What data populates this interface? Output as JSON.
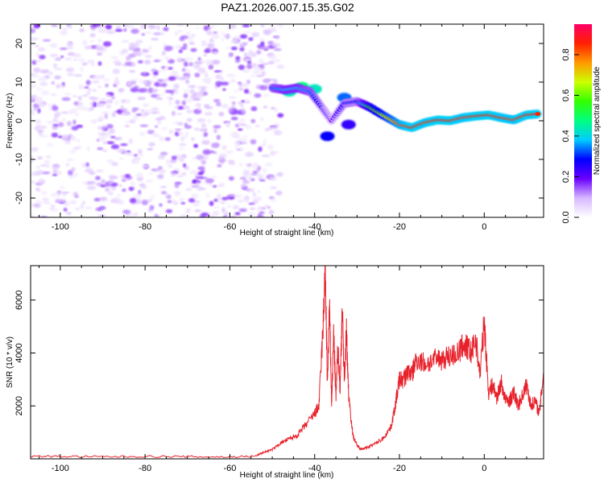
{
  "figure": {
    "title": "PAZ1.2026.007.15.35.G02"
  },
  "colors": {
    "snr_line": "#e8202a",
    "axis": "#000000"
  },
  "chart_data": [
    {
      "type": "heatmap",
      "name": "spectrogram",
      "xlabel": "Height of straight line (km)",
      "ylabel": "Frequency (Hz)",
      "xlim": [
        -107,
        14
      ],
      "ylim": [
        -25,
        25
      ],
      "xticks": [
        -100,
        -80,
        -60,
        -40,
        -20,
        0
      ],
      "yticks": [
        -20,
        -10,
        0,
        10,
        20
      ],
      "colorbar": {
        "label": "Normalized spectral amplitude",
        "range": [
          0,
          0.95
        ],
        "ticks": [
          0.0,
          0.2,
          0.4,
          0.6,
          0.8
        ]
      },
      "noise_region": {
        "x": [
          -107,
          -48
        ],
        "y": [
          -25,
          25
        ],
        "amplitude": [
          0.03,
          0.2
        ]
      },
      "ridge": [
        {
          "x": -50,
          "y": 8.5,
          "a": 0.35
        },
        {
          "x": -47,
          "y": 8.0,
          "a": 0.4
        },
        {
          "x": -44,
          "y": 8.5,
          "a": 0.4
        },
        {
          "x": -41,
          "y": 7.5,
          "a": 0.35
        },
        {
          "x": -38,
          "y": 3.0,
          "a": 0.25
        },
        {
          "x": -36,
          "y": 0.0,
          "a": 0.2
        },
        {
          "x": -33,
          "y": 4.5,
          "a": 0.3
        },
        {
          "x": -30,
          "y": 5.0,
          "a": 0.3
        },
        {
          "x": -27,
          "y": 3.5,
          "a": 0.6
        },
        {
          "x": -24,
          "y": 1.5,
          "a": 0.7
        },
        {
          "x": -20,
          "y": -1.0,
          "a": 0.85
        },
        {
          "x": -17,
          "y": -1.8,
          "a": 0.9
        },
        {
          "x": -14,
          "y": -0.5,
          "a": 0.88
        },
        {
          "x": -11,
          "y": 0.2,
          "a": 0.9
        },
        {
          "x": -8,
          "y": 0.0,
          "a": 0.9
        },
        {
          "x": -5,
          "y": 0.8,
          "a": 0.88
        },
        {
          "x": -2,
          "y": 1.2,
          "a": 0.9
        },
        {
          "x": 1,
          "y": 1.5,
          "a": 0.9
        },
        {
          "x": 4,
          "y": 0.8,
          "a": 0.88
        },
        {
          "x": 7,
          "y": 0.2,
          "a": 0.88
        },
        {
          "x": 10,
          "y": 1.5,
          "a": 0.9
        },
        {
          "x": 13,
          "y": 1.8,
          "a": 0.9
        }
      ],
      "blobs": [
        {
          "x": -46,
          "y": 7.5,
          "a": 0.45
        },
        {
          "x": -43,
          "y": 8.8,
          "a": 0.5
        },
        {
          "x": -40,
          "y": 8.2,
          "a": 0.45
        },
        {
          "x": -37,
          "y": -4.0,
          "a": 0.3
        },
        {
          "x": -32,
          "y": -1.0,
          "a": 0.25
        },
        {
          "x": -33,
          "y": 6.0,
          "a": 0.35
        }
      ]
    },
    {
      "type": "line",
      "name": "snr",
      "xlabel": "Height of straight line (km)",
      "ylabel": "SNR (10 * v/v)",
      "xlim": [
        -107,
        14
      ],
      "ylim": [
        0,
        7300
      ],
      "xticks": [
        -100,
        -80,
        -60,
        -40,
        -20,
        0
      ],
      "yticks": [
        2000,
        4000,
        6000
      ],
      "series": [
        {
          "name": "SNR",
          "x": [
            -107,
            -100,
            -90,
            -80,
            -70,
            -60,
            -54,
            -52,
            -50,
            -48,
            -46,
            -44,
            -42,
            -40,
            -39,
            -38,
            -37.5,
            -37,
            -36.5,
            -36,
            -35.5,
            -35,
            -34.5,
            -34,
            -33.5,
            -33,
            -32.5,
            -32,
            -31,
            -30,
            -29,
            -28,
            -26,
            -24,
            -22,
            -21,
            -20,
            -19,
            -18,
            -17,
            -16,
            -14,
            -12,
            -10,
            -8,
            -6,
            -5,
            -4,
            -3,
            -2,
            -1,
            0,
            1,
            2,
            3,
            4,
            5,
            6,
            7,
            8,
            9,
            10,
            11,
            12,
            13,
            14
          ],
          "y": [
            100,
            90,
            80,
            90,
            80,
            70,
            100,
            250,
            350,
            600,
            750,
            900,
            1300,
            1700,
            2000,
            5000,
            7300,
            2800,
            5800,
            2100,
            4800,
            2300,
            4200,
            2600,
            5700,
            3000,
            4800,
            2500,
            900,
            500,
            380,
            400,
            550,
            750,
            1200,
            2000,
            3000,
            3000,
            3300,
            3200,
            3800,
            3600,
            3700,
            3800,
            3900,
            4000,
            4300,
            4200,
            4000,
            4500,
            3200,
            5200,
            2500,
            2800,
            2300,
            2900,
            2200,
            2200,
            2500,
            2000,
            2400,
            2800,
            2000,
            2200,
            1700,
            3300
          ]
        }
      ]
    }
  ]
}
